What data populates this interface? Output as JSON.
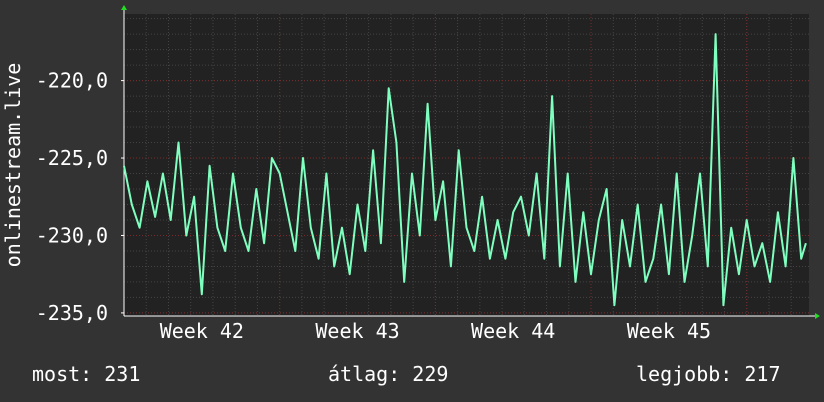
{
  "chart_data": {
    "type": "line",
    "title": "",
    "ylabel": "onlinestream.live",
    "xlabel": "",
    "x_tick_labels": [
      "Week 42",
      "Week 43",
      "Week 44",
      "Week 45"
    ],
    "y_ticks": [
      -220,
      -225,
      -230,
      -235
    ],
    "y_tick_labels": [
      "-220,0",
      "-225,0",
      "-230,0",
      "-235,0"
    ],
    "ylim": [
      -235.2,
      -215.7
    ],
    "xlim": [
      0,
      4.4
    ],
    "grid": true,
    "legend": "none",
    "series": [
      {
        "color": "#7fffbf",
        "x": [
          0,
          0.05,
          0.1,
          0.15,
          0.2,
          0.25,
          0.3,
          0.35,
          0.4,
          0.45,
          0.5,
          0.55,
          0.6,
          0.65,
          0.7,
          0.75,
          0.8,
          0.85,
          0.9,
          0.95,
          1.0,
          1.05,
          1.1,
          1.15,
          1.2,
          1.25,
          1.3,
          1.35,
          1.4,
          1.45,
          1.5,
          1.55,
          1.6,
          1.65,
          1.7,
          1.75,
          1.8,
          1.85,
          1.9,
          1.95,
          2.0,
          2.05,
          2.1,
          2.15,
          2.2,
          2.25,
          2.3,
          2.35,
          2.4,
          2.45,
          2.5,
          2.55,
          2.6,
          2.65,
          2.7,
          2.75,
          2.8,
          2.85,
          2.9,
          2.95,
          3.0,
          3.05,
          3.1,
          3.15,
          3.2,
          3.25,
          3.3,
          3.35,
          3.4,
          3.45,
          3.5,
          3.55,
          3.6,
          3.65,
          3.7,
          3.75,
          3.8,
          3.85,
          3.9,
          3.95,
          4.0,
          4.05,
          4.1,
          4.15,
          4.2,
          4.25,
          4.3,
          4.35,
          4.38
        ],
        "values": [
          -225.5,
          -228.0,
          -229.5,
          -226.5,
          -228.8,
          -226.0,
          -229.0,
          -224.0,
          -230.0,
          -227.5,
          -233.8,
          -225.5,
          -229.5,
          -231.0,
          -226.0,
          -229.5,
          -231.0,
          -227.0,
          -230.5,
          -225.0,
          -226.0,
          -228.5,
          -231.0,
          -225.0,
          -229.5,
          -231.5,
          -226.0,
          -232.0,
          -229.5,
          -232.5,
          -228.0,
          -231.0,
          -224.5,
          -230.5,
          -220.5,
          -224.0,
          -233.0,
          -226.0,
          -230.0,
          -221.5,
          -229.0,
          -226.5,
          -232.0,
          -224.5,
          -229.5,
          -231.0,
          -227.5,
          -231.5,
          -229.0,
          -231.5,
          -228.5,
          -227.5,
          -230.0,
          -226.0,
          -231.5,
          -221.0,
          -232.0,
          -226.0,
          -233.0,
          -228.5,
          -232.5,
          -229.0,
          -227.0,
          -234.5,
          -229.0,
          -232.0,
          -228.0,
          -233.0,
          -231.5,
          -228.0,
          -232.5,
          -226.0,
          -233.0,
          -230.0,
          -226.0,
          -232.0,
          -217.0,
          -234.5,
          -229.5,
          -232.5,
          -229.0,
          -232.0,
          -230.5,
          -233.0,
          -228.5,
          -232.0,
          -225.0,
          -231.5,
          -230.5
        ]
      }
    ]
  },
  "footer": {
    "current": "most: 231",
    "average": "átlag: 229",
    "best": "legjobb: 217"
  }
}
